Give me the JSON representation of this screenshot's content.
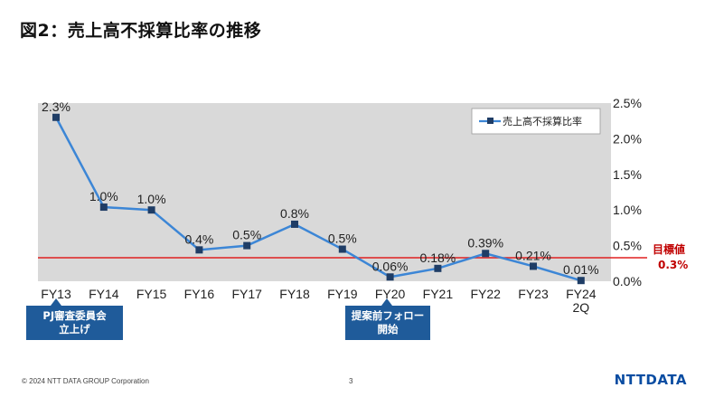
{
  "title": "図2：売上高不採算比率の推移",
  "chart_data": {
    "type": "line",
    "categories": [
      "FY13",
      "FY14",
      "FY15",
      "FY16",
      "FY17",
      "FY18",
      "FY19",
      "FY20",
      "FY21",
      "FY22",
      "FY23",
      "FY24 2Q"
    ],
    "series": [
      {
        "name": "売上高不採算比率",
        "values": [
          2.3,
          1.04,
          1.0,
          0.44,
          0.5,
          0.8,
          0.45,
          0.06,
          0.18,
          0.39,
          0.21,
          0.01
        ],
        "labels": [
          "2.3%",
          "1.0%",
          "1.0%",
          "0.4%",
          "0.5%",
          "0.8%",
          "0.5%",
          "0.06%",
          "0.18%",
          "0.39%",
          "0.21%",
          "0.01%"
        ],
        "color": "#3c86d6"
      }
    ],
    "ylim": [
      0,
      2.5
    ],
    "yticks": [
      0,
      0.5,
      1.0,
      1.5,
      2.0,
      2.5
    ],
    "ytick_labels": [
      "0.0%",
      "0.5%",
      "1.0%",
      "1.5%",
      "2.0%",
      "2.5%"
    ],
    "y_axis_side": "right",
    "grid": false,
    "legend_position": "top-right",
    "target": {
      "value": 0.33,
      "label_line1": "目標値",
      "label_line2": "0.3%",
      "color": "#e02020"
    },
    "plot_background": "#d9d9d9",
    "marker_color": "#1f3d66"
  },
  "callouts": [
    {
      "text_line1": "PJ審査委員会",
      "text_line2": "立上げ"
    },
    {
      "text_line1": "提案前フォロー",
      "text_line2": "開始"
    }
  ],
  "footer": {
    "copyright": "© 2024 NTT DATA GROUP Corporation",
    "page": "3",
    "logo": "NTTDATA"
  }
}
